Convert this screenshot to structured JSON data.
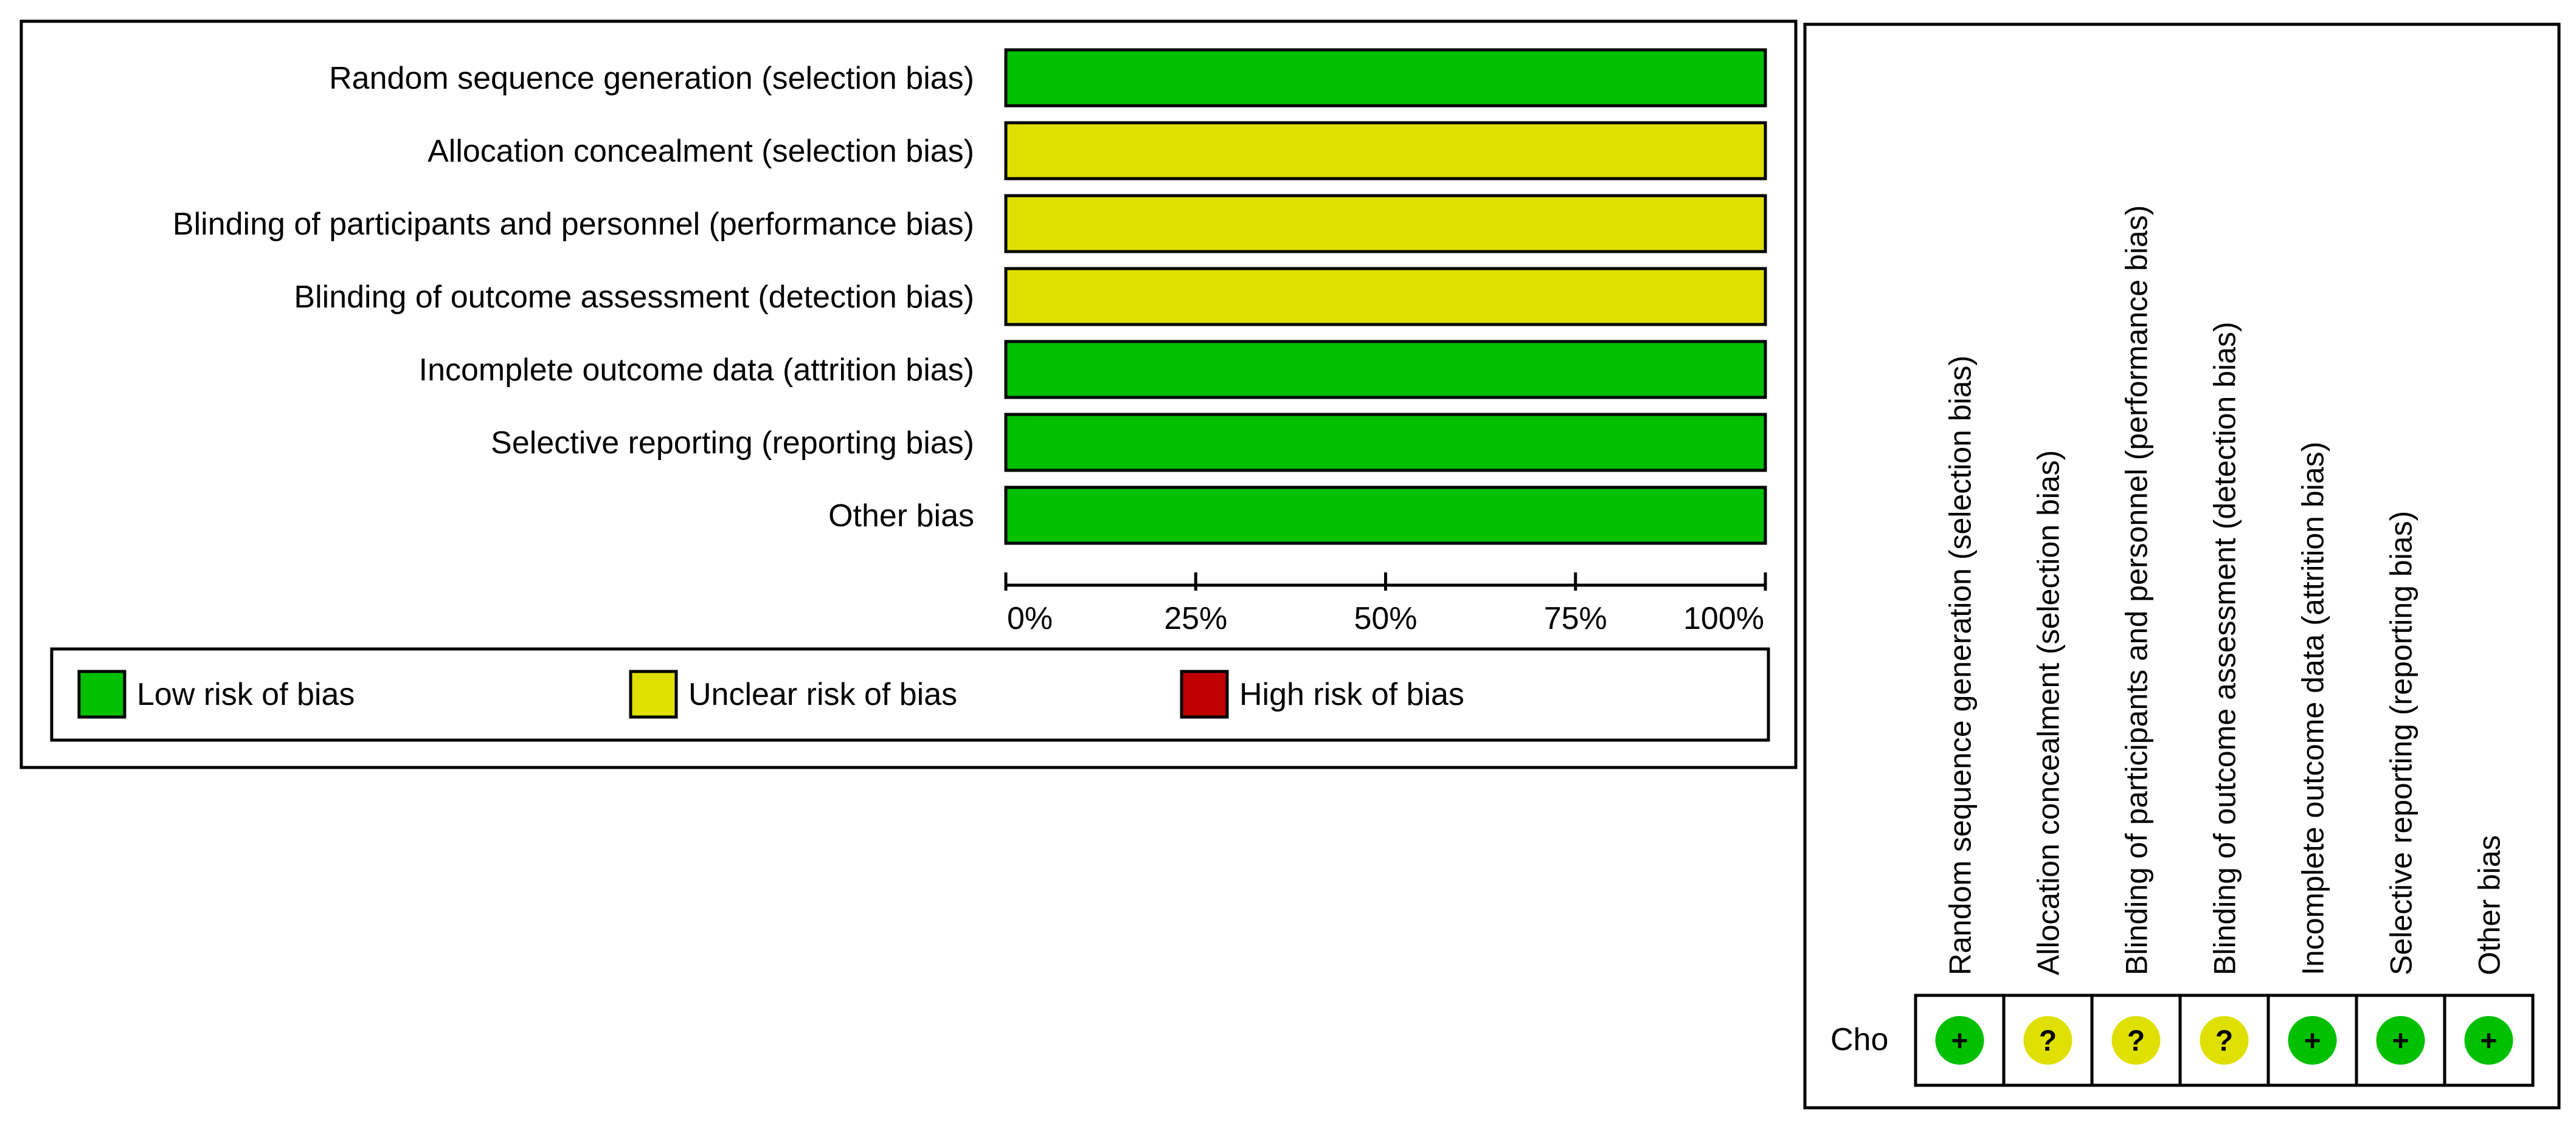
{
  "summary_panel": {
    "legend": [
      {
        "label": "Low risk of bias",
        "color": "#00c000"
      },
      {
        "label": "Unclear risk of bias",
        "color": "#e0e000"
      },
      {
        "label": "High risk of bias",
        "color": "#c00000"
      }
    ]
  },
  "table_panel": {
    "study": "Cho",
    "column_headers": [
      "Random sequence generation (selection bias)",
      "Allocation concealment (selection bias)",
      "Blinding of participants and personnel (performance bias)",
      "Blinding of outcome assessment (detection bias)",
      "Incomplete outcome data (attrition bias)",
      "Selective reporting (reporting bias)",
      "Other bias"
    ],
    "judgements": [
      {
        "symbol": "+",
        "risk": "low"
      },
      {
        "symbol": "?",
        "risk": "unclear"
      },
      {
        "symbol": "?",
        "risk": "unclear"
      },
      {
        "symbol": "?",
        "risk": "unclear"
      },
      {
        "symbol": "+",
        "risk": "low"
      },
      {
        "symbol": "+",
        "risk": "low"
      },
      {
        "symbol": "+",
        "risk": "low"
      }
    ]
  },
  "chart_data": {
    "type": "bar",
    "orientation": "horizontal",
    "stacked": true,
    "categories": [
      "Random sequence generation (selection bias)",
      "Allocation concealment (selection bias)",
      "Blinding of participants and personnel (performance bias)",
      "Blinding of outcome assessment (detection bias)",
      "Incomplete outcome data (attrition bias)",
      "Selective reporting (reporting bias)",
      "Other bias"
    ],
    "series": [
      {
        "name": "Low risk of bias",
        "color": "#00c000",
        "values": [
          100,
          0,
          0,
          0,
          100,
          100,
          100
        ]
      },
      {
        "name": "Unclear risk of bias",
        "color": "#e0e000",
        "values": [
          0,
          100,
          100,
          100,
          0,
          0,
          0
        ]
      },
      {
        "name": "High risk of bias",
        "color": "#c00000",
        "values": [
          0,
          0,
          0,
          0,
          0,
          0,
          0
        ]
      }
    ],
    "xlim": [
      0,
      100
    ],
    "xticks": [
      "0%",
      "25%",
      "50%",
      "75%",
      "100%"
    ],
    "grid": false,
    "legend_position": "bottom"
  }
}
